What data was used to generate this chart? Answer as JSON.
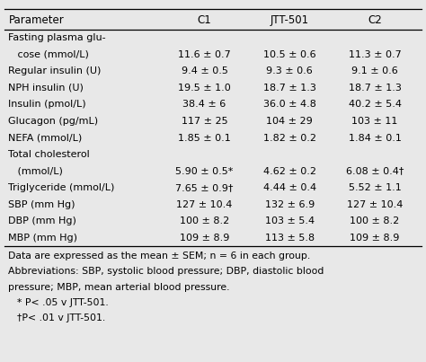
{
  "headers": [
    "Parameter",
    "C1",
    "JTT-501",
    "C2"
  ],
  "rows": [
    [
      "Fasting plasma glu-",
      "",
      "",
      ""
    ],
    [
      "   cose (mmol/L)",
      "11.6 ± 0.7",
      "10.5 ± 0.6",
      "11.3 ± 0.7"
    ],
    [
      "Regular insulin (U)",
      "9.4 ± 0.5",
      "9.3 ± 0.6",
      "9.1 ± 0.6"
    ],
    [
      "NPH insulin (U)",
      "19.5 ± 1.0",
      "18.7 ± 1.3",
      "18.7 ± 1.3"
    ],
    [
      "Insulin (pmol/L)",
      "38.4 ± 6",
      "36.0 ± 4.8",
      "40.2 ± 5.4"
    ],
    [
      "Glucagon (pg/mL)",
      "117 ± 25",
      "104 ± 29",
      "103 ± 11"
    ],
    [
      "NEFA (mmol/L)",
      "1.85 ± 0.1",
      "1.82 ± 0.2",
      "1.84 ± 0.1"
    ],
    [
      "Total cholesterol",
      "",
      "",
      ""
    ],
    [
      "   (mmol/L)",
      "5.90 ± 0.5*",
      "4.62 ± 0.2",
      "6.08 ± 0.4†"
    ],
    [
      "Triglyceride (mmol/L)",
      "7.65 ± 0.9†",
      "4.44 ± 0.4",
      "5.52 ± 1.1"
    ],
    [
      "SBP (mm Hg)",
      "127 ± 10.4",
      "132 ± 6.9",
      "127 ± 10.4"
    ],
    [
      "DBP (mm Hg)",
      "100 ± 8.2",
      "103 ± 5.4",
      "100 ± 8.2"
    ],
    [
      "MBP (mm Hg)",
      "109 ± 8.9",
      "113 ± 5.8",
      "109 ± 8.9"
    ]
  ],
  "footnote_lines": [
    "Data are expressed as the mean ± SEM; n = 6 in each group.",
    "Abbreviations: SBP, systolic blood pressure; DBP, diastolic blood",
    "pressure; MBP, mean arterial blood pressure.",
    "* P< .05 v JTT-501.",
    "†P< .01 v JTT-501."
  ],
  "bg_color": "#e8e8e8",
  "font_size": 8.0,
  "header_font_size": 8.5,
  "footnote_font_size": 7.8
}
